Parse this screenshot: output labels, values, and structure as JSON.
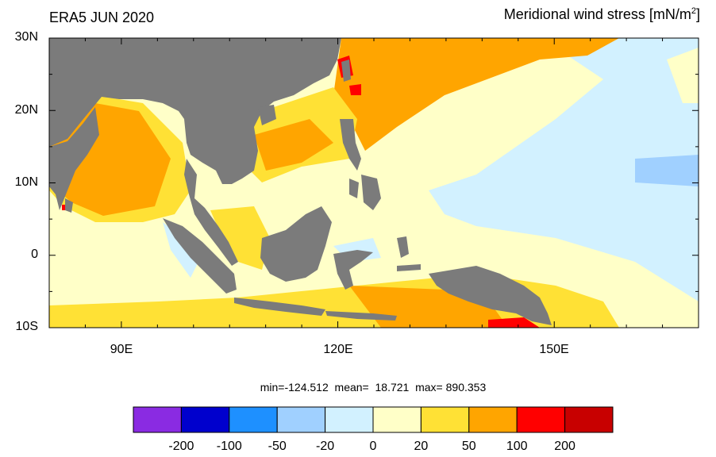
{
  "title_left": "ERA5 JUN 2020",
  "title_right": "Meridional wind stress [mN/m",
  "title_right_sup": "2",
  "title_right_end": "]",
  "y_axis_labels": [
    "30N",
    "20N",
    "10N",
    "0",
    "10S"
  ],
  "x_axis_labels": [
    "90E",
    "120E",
    "150E"
  ],
  "stats": "min=-124.512  mean=  18.721  max= 890.353",
  "colorbar": {
    "colors": [
      "#8a2be2",
      "#0000cd",
      "#1e90ff",
      "#a0d0ff",
      "#d2f1ff",
      "#ffffc8",
      "#ffe135",
      "#ffa500",
      "#ff0000",
      "#c80000"
    ],
    "labels": [
      "-200",
      "-100",
      "-50",
      "-20",
      "0",
      "20",
      "50",
      "100",
      "200"
    ]
  },
  "land_color": "#7b7b7b"
}
